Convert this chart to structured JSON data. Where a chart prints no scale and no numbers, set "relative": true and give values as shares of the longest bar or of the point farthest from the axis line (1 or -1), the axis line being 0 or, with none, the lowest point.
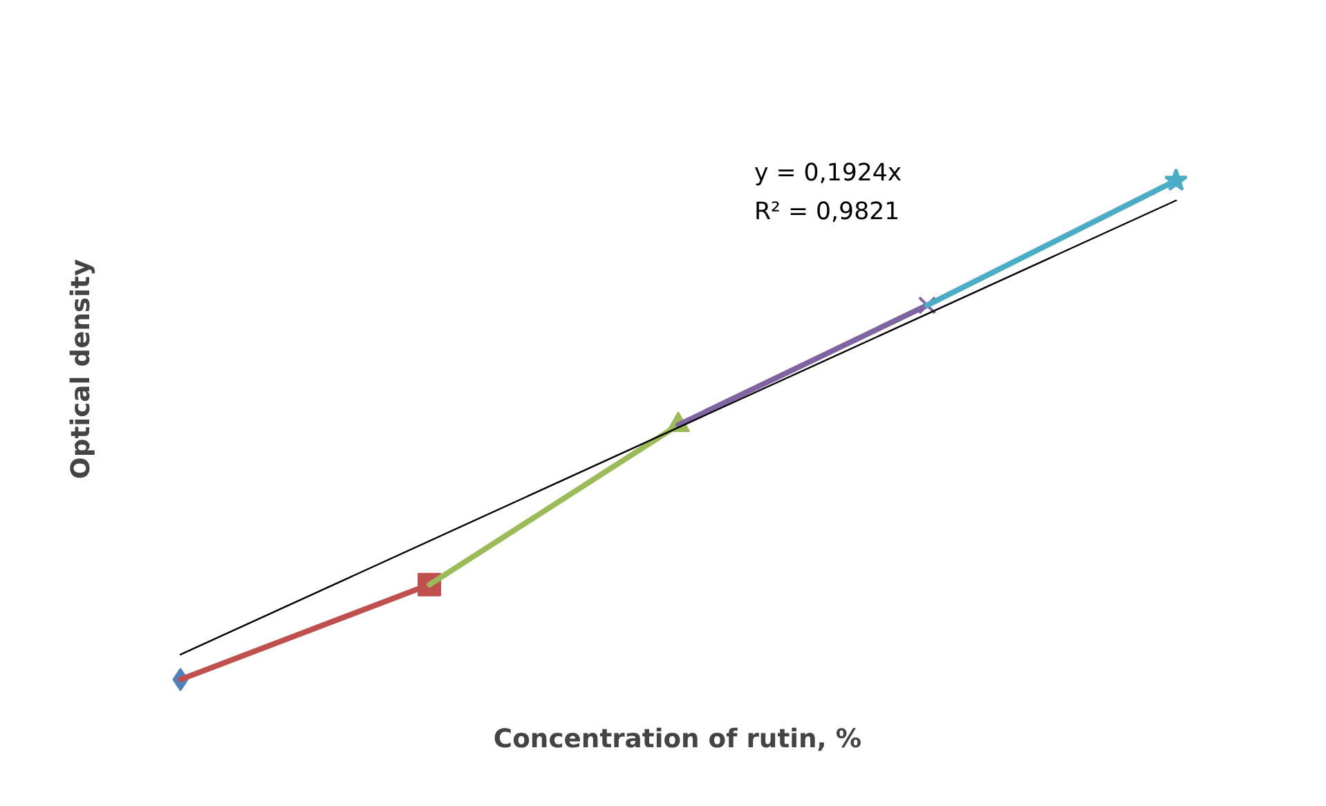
{
  "chart_data": {
    "type": "line",
    "relative": true,
    "xlabel": "Concentration of rutin, %",
    "ylabel": "Optical density",
    "categories": [
      null,
      null,
      null,
      null,
      null
    ],
    "series": [
      {
        "color": "#4f81bd",
        "marker": "diamond",
        "values": [
          0,
          null,
          null,
          null,
          null
        ]
      },
      {
        "color": "#c0504d",
        "marker": "square",
        "values": [
          0,
          0.19,
          null,
          null,
          null
        ]
      },
      {
        "color": "#9bbb59",
        "marker": "triangle",
        "values": [
          null,
          0.19,
          0.51,
          null,
          null
        ]
      },
      {
        "color": "#8064a2",
        "marker": "cross",
        "values": [
          null,
          null,
          0.51,
          0.75,
          null
        ]
      },
      {
        "color": "#4bacc6",
        "marker": "star",
        "values": [
          null,
          null,
          null,
          0.75,
          1
        ]
      },
      {
        "type": "line",
        "color": "#000000",
        "marker": "none",
        "values": [
          0.05,
          null,
          null,
          null,
          0.96
        ]
      }
    ],
    "annotations": [
      "y = 0,1924x",
      "R² = 0,9821"
    ],
    "grid": false
  }
}
